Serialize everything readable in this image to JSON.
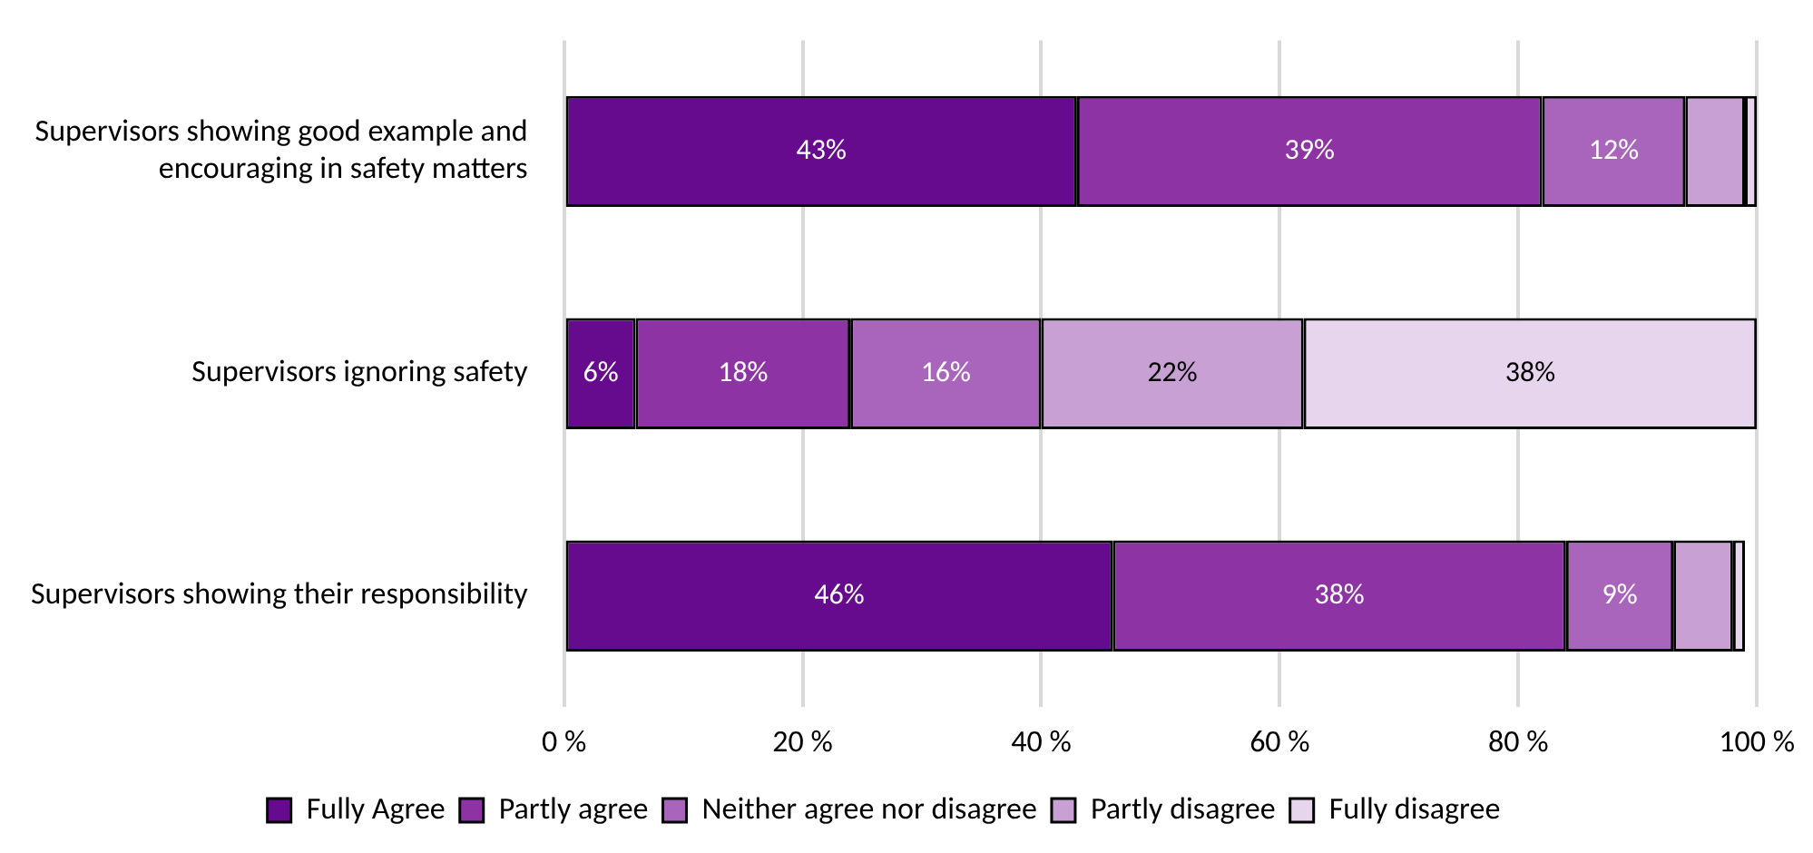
{
  "chart_data": {
    "type": "bar",
    "orientation": "horizontal",
    "stacked": true,
    "categories": [
      "Supervisors showing good example and encouraging in safety matters",
      "Supervisors ignoring safety",
      "Supervisors showing their responsibility"
    ],
    "series": [
      {
        "name": "Fully Agree",
        "color": "#660a8e",
        "values": [
          43,
          6,
          46
        ],
        "value_labels": [
          "43%",
          "6%",
          "46%"
        ]
      },
      {
        "name": "Partly agree",
        "color": "#8e33a4",
        "values": [
          39,
          18,
          38
        ],
        "value_labels": [
          "39%",
          "18%",
          "38%"
        ]
      },
      {
        "name": "Neither agree nor disagree",
        "color": "#a965bb",
        "values": [
          12,
          16,
          9
        ],
        "value_labels": [
          "12%",
          "16%",
          "9%"
        ]
      },
      {
        "name": "Partly disagree",
        "color": "#c8a0d4",
        "values": [
          5,
          22,
          5
        ],
        "value_labels": [
          null,
          "22%",
          null
        ]
      },
      {
        "name": "Fully disagree",
        "color": "#e6d5ec",
        "values": [
          1,
          38,
          1
        ],
        "value_labels": [
          null,
          "38%",
          null
        ]
      }
    ],
    "xlim": [
      0,
      100
    ],
    "xticks": [
      {
        "value": 0,
        "label": "0 %"
      },
      {
        "value": 20,
        "label": "20 %"
      },
      {
        "value": 40,
        "label": "40 %"
      },
      {
        "value": 60,
        "label": "60 %"
      },
      {
        "value": 80,
        "label": "80 %"
      },
      {
        "value": 100,
        "label": "100 %"
      }
    ],
    "grid": "x",
    "legend": "bottom"
  }
}
